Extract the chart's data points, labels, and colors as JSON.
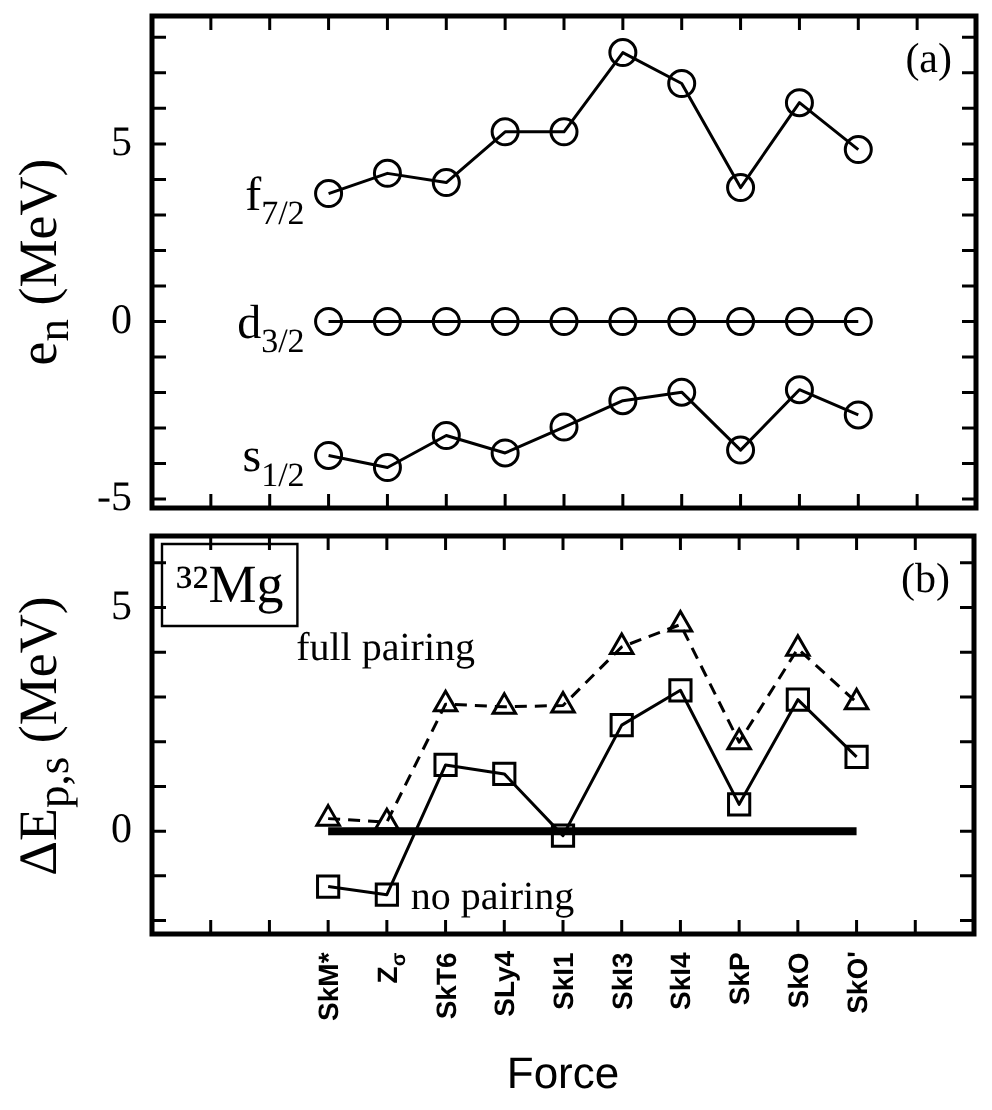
{
  "chart_data": [
    {
      "type": "line",
      "ylabel": "e$_{n}$ (MeV)",
      "annotations": [
        "(a)"
      ],
      "categories": [
        null,
        null,
        null,
        null,
        null,
        null,
        null,
        null,
        null,
        null,
        null,
        null,
        null,
        null,
        null
      ],
      "series": [
        {
          "name": "f$_{7/2}$",
          "color": "#000000",
          "values": [
            null,
            null,
            null,
            3.6,
            4.17,
            3.91,
            5.34,
            5.34,
            7.57,
            6.7,
            3.77,
            6.16,
            4.84,
            null,
            null
          ]
        },
        {
          "name": "d$_{3/2}$",
          "color": "#000000",
          "values": [
            null,
            null,
            null,
            0,
            0,
            0,
            0,
            0,
            0,
            0,
            0,
            0,
            0,
            null,
            null
          ]
        },
        {
          "name": "s$_{1/2}$",
          "color": "#000000",
          "values": [
            null,
            null,
            null,
            -3.77,
            -4.11,
            -3.21,
            -3.7,
            -2.97,
            -2.23,
            -1.99,
            -3.62,
            -1.92,
            -2.63,
            null,
            null
          ]
        }
      ],
      "ylim": [
        -5.25,
        8.6
      ],
      "yticks": [
        -5,
        {
          "value": -4,
          "label": null
        },
        {
          "value": -3,
          "label": null
        },
        {
          "value": -2,
          "label": null
        },
        {
          "value": -1,
          "label": null
        },
        0,
        {
          "value": 1,
          "label": null
        },
        {
          "value": 2,
          "label": null
        },
        {
          "value": 3,
          "label": null
        },
        {
          "value": 4,
          "label": null
        },
        5,
        {
          "value": 6,
          "label": null
        },
        {
          "value": 7,
          "label": null
        },
        {
          "value": 8,
          "label": null
        }
      ],
      "marker": "circle",
      "line_style": "solid",
      "grid": false,
      "legend": "left",
      "tick_labels": "y"
    },
    {
      "type": "line",
      "ylabel": "ΔE$_{p,s}$ (MeV)",
      "xlabel": "Force",
      "annotations": [
        "(b)",
        "³²Mg"
      ],
      "categories": [
        null,
        null,
        null,
        "SkM*",
        "Z$_{σ}$",
        "SkT6",
        "SLy4",
        "SkI1",
        "SkI3",
        "SkI4",
        "SkP",
        "SkO",
        "SkO'",
        null,
        null
      ],
      "series": [
        {
          "name": "full pairing",
          "color": "#000000",
          "marker": "triangle",
          "line_style": "dashed",
          "values": [
            null,
            null,
            null,
            0.28,
            0.2,
            2.84,
            2.78,
            2.81,
            4.12,
            4.62,
            1.99,
            4.08,
            2.88,
            null,
            null
          ]
        },
        {
          "name": "no pairing",
          "color": "#000000",
          "marker": "square",
          "line_style": "solid",
          "values": [
            null,
            null,
            null,
            -1.24,
            -1.42,
            1.48,
            1.28,
            -0.1,
            2.37,
            3.15,
            0.6,
            2.94,
            1.66,
            null,
            null
          ]
        }
      ],
      "ref_lines": [
        {
          "axis": "y",
          "value": 0,
          "color": "#000000"
        }
      ],
      "ylim": [
        -2.3,
        6.6
      ],
      "yticks": [
        {
          "value": -2,
          "label": null
        },
        {
          "value": -1,
          "label": null
        },
        0,
        {
          "value": 1,
          "label": null
        },
        {
          "value": 2,
          "label": null
        },
        {
          "value": 3,
          "label": null
        },
        {
          "value": 4,
          "label": null
        },
        5,
        {
          "value": 6,
          "label": null
        }
      ],
      "grid": false,
      "legend": false
    }
  ]
}
